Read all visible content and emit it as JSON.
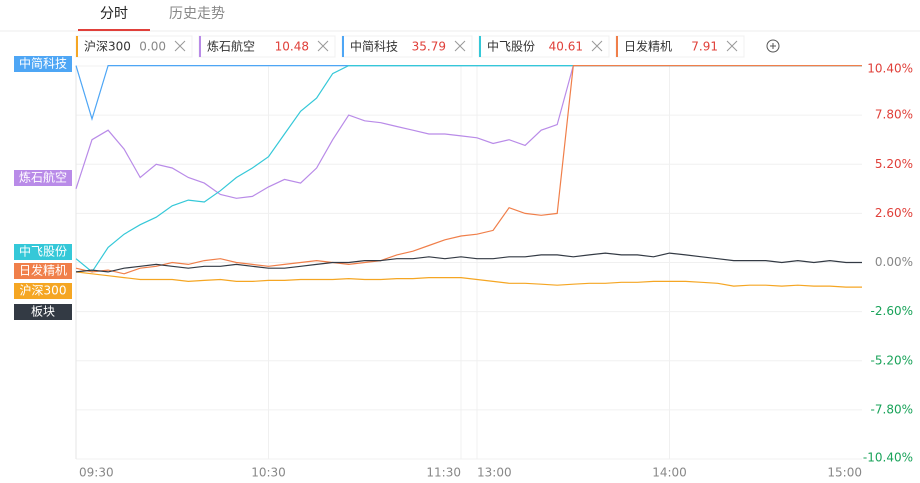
{
  "tabs": [
    "分时",
    "历史走势"
  ],
  "chart_data": {
    "type": "line",
    "categories": [
      "09:30",
      null,
      null,
      null,
      null,
      null,
      null,
      null,
      null,
      null,
      null,
      null,
      "10:30",
      null,
      null,
      null,
      null,
      null,
      null,
      null,
      null,
      null,
      null,
      null,
      "11:30",
      "13:00",
      null,
      null,
      null,
      null,
      null,
      null,
      null,
      null,
      null,
      null,
      null,
      "14:00",
      null,
      null,
      null,
      null,
      null,
      null,
      null,
      null,
      null,
      null,
      null,
      "15:00"
    ],
    "series": [
      {
        "name": "沪深300",
        "quote": "0.00",
        "color": "#f5a623",
        "values": [
          -0.5,
          -0.6,
          -0.7,
          -0.8,
          -0.9,
          -0.9,
          -0.9,
          -1.0,
          -0.95,
          -0.9,
          -1.0,
          -1.0,
          -0.95,
          -0.95,
          -0.9,
          -0.9,
          -0.9,
          -0.85,
          -0.9,
          -0.9,
          -0.85,
          -0.85,
          -0.8,
          -0.8,
          -0.8,
          -0.9,
          -1.0,
          -1.1,
          -1.1,
          -1.15,
          -1.2,
          -1.15,
          -1.1,
          -1.1,
          -1.05,
          -1.05,
          -1.0,
          -1.0,
          -1.0,
          -1.05,
          -1.1,
          -1.25,
          -1.2,
          -1.2,
          -1.25,
          -1.2,
          -1.25,
          -1.25,
          -1.3,
          -1.3
        ]
      },
      {
        "name": "炼石航空",
        "quote": "10.48",
        "color": "#b98be8",
        "values": [
          3.9,
          6.5,
          7.0,
          6.0,
          4.5,
          5.2,
          5.0,
          4.5,
          4.2,
          3.6,
          3.4,
          3.5,
          4.0,
          4.4,
          4.2,
          5.0,
          6.5,
          7.8,
          7.5,
          7.4,
          7.2,
          7.0,
          6.8,
          6.8,
          6.7,
          6.6,
          6.3,
          6.5,
          6.2,
          7.0,
          7.3,
          10.42,
          10.42,
          10.42,
          10.42,
          10.42,
          10.42,
          10.42,
          10.42,
          10.42,
          10.42,
          10.42,
          10.42,
          10.42,
          10.42,
          10.42,
          10.42,
          10.42,
          10.42,
          10.42
        ]
      },
      {
        "name": "中简科技",
        "quote": "35.79",
        "color": "#4ea6f5",
        "values": [
          10.42,
          7.6,
          10.42,
          10.42,
          10.42,
          10.42,
          10.42,
          10.42,
          10.42,
          10.42,
          10.42,
          10.42,
          10.42,
          10.42,
          10.42,
          10.42,
          10.42,
          10.42,
          10.42,
          10.42,
          10.42,
          10.42,
          10.42,
          10.42,
          10.42,
          10.42,
          10.42,
          10.42,
          10.42,
          10.42,
          10.42,
          10.42,
          10.42,
          10.42,
          10.42,
          10.42,
          10.42,
          10.42,
          10.42,
          10.42,
          10.42,
          10.42,
          10.42,
          10.42,
          10.42,
          10.42,
          10.42,
          10.42,
          10.42,
          10.42
        ]
      },
      {
        "name": "中飞股份",
        "quote": "40.61",
        "color": "#35c8d8",
        "values": [
          0.2,
          -0.5,
          0.8,
          1.5,
          2.0,
          2.4,
          3.0,
          3.3,
          3.2,
          3.8,
          4.5,
          5.0,
          5.6,
          6.8,
          8.0,
          8.7,
          10.0,
          10.42,
          10.42,
          10.42,
          10.42,
          10.42,
          10.42,
          10.42,
          10.42,
          10.42,
          10.42,
          10.42,
          10.42,
          10.42,
          10.42,
          10.42,
          10.42,
          10.42,
          10.42,
          10.42,
          10.42,
          10.42,
          10.42,
          10.42,
          10.42,
          10.42,
          10.42,
          10.42,
          10.42,
          10.42,
          10.42,
          10.42,
          10.42,
          10.42
        ]
      },
      {
        "name": "日发精机",
        "quote": "7.91",
        "color": "#f07f4a",
        "values": [
          -0.3,
          -0.5,
          -0.4,
          -0.6,
          -0.3,
          -0.2,
          0.0,
          -0.1,
          0.1,
          0.2,
          0.0,
          -0.1,
          -0.2,
          -0.1,
          0.0,
          0.1,
          0.0,
          -0.1,
          0.0,
          0.1,
          0.4,
          0.6,
          0.9,
          1.2,
          1.4,
          1.5,
          1.7,
          2.9,
          2.6,
          2.5,
          2.6,
          10.42,
          10.42,
          10.42,
          10.42,
          10.42,
          10.42,
          10.42,
          10.42,
          10.42,
          10.42,
          10.42,
          10.42,
          10.42,
          10.42,
          10.42,
          10.42,
          10.42,
          10.42,
          10.42
        ]
      },
      {
        "name": "板块",
        "color": "#333a44",
        "values": [
          -0.5,
          -0.4,
          -0.5,
          -0.3,
          -0.2,
          -0.1,
          -0.2,
          -0.3,
          -0.2,
          -0.2,
          -0.1,
          -0.2,
          -0.3,
          -0.3,
          -0.2,
          -0.1,
          0.0,
          0.0,
          0.1,
          0.1,
          0.2,
          0.2,
          0.3,
          0.2,
          0.3,
          0.2,
          0.2,
          0.3,
          0.3,
          0.4,
          0.4,
          0.3,
          0.4,
          0.5,
          0.4,
          0.4,
          0.3,
          0.5,
          0.4,
          0.3,
          0.2,
          0.1,
          0.1,
          0.1,
          0.0,
          0.1,
          0.0,
          0.1,
          0.0,
          0.0
        ]
      }
    ],
    "ylim": [
      -10.4,
      10.4
    ],
    "yticks": [
      {
        "value": 10.4,
        "label": "10.40%"
      },
      {
        "value": 7.8,
        "label": "7.80%"
      },
      {
        "value": 5.2,
        "label": "5.20%"
      },
      {
        "value": 2.6,
        "label": "2.60%"
      },
      {
        "value": 0,
        "label": "0.00%"
      },
      {
        "value": -2.6,
        "label": "-2.60%"
      },
      {
        "value": -5.2,
        "label": "-5.20%"
      },
      {
        "value": -7.8,
        "label": "-7.80%"
      },
      {
        "value": -10.4,
        "label": "-10.40%"
      }
    ],
    "grid": true
  }
}
